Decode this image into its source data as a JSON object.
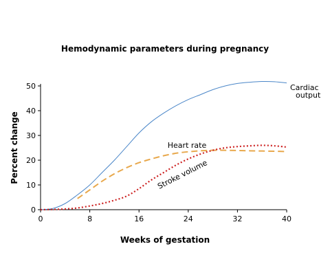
{
  "chart_data": {
    "type": "line",
    "title": "Hemodynamic parameters during pregnancy",
    "xlabel": "Weeks of gestation",
    "ylabel": "Percent change",
    "xlim": [
      0,
      40
    ],
    "ylim": [
      0,
      50
    ],
    "xticks": [
      0,
      8,
      16,
      24,
      32,
      40
    ],
    "yticks": [
      0,
      10,
      20,
      30,
      40,
      50
    ],
    "grid": false,
    "series": [
      {
        "name": "Cardiac output",
        "label_lines": [
          "Cardiac",
          "output"
        ],
        "color": "#4a86c8",
        "dash": "solid",
        "x": [
          0,
          2,
          4,
          6,
          8,
          10,
          12,
          14,
          16,
          18,
          20,
          22,
          24,
          26,
          28,
          30,
          32,
          34,
          36,
          38,
          40
        ],
        "y": [
          0,
          0.5,
          2.5,
          6,
          10,
          15,
          20,
          25.5,
          31,
          35.5,
          39,
          42,
          44.5,
          46.5,
          48.5,
          50,
          51,
          51.5,
          51.8,
          51.7,
          51.2
        ]
      },
      {
        "name": "Heart rate",
        "label_lines": [
          "Heart rate"
        ],
        "color": "#e8a84c",
        "dash": "dash",
        "x": [
          6,
          8,
          10,
          12,
          14,
          16,
          18,
          20,
          22,
          24,
          26,
          28,
          30,
          32,
          34,
          36,
          38,
          40
        ],
        "y": [
          4.5,
          8,
          11.5,
          14.5,
          17,
          19,
          20.5,
          21.8,
          22.8,
          23.4,
          23.8,
          24,
          24,
          23.9,
          23.8,
          23.7,
          23.6,
          23.5
        ]
      },
      {
        "name": "Stroke volume",
        "label_lines": [
          "Stroke volume"
        ],
        "color": "#cc1f1f",
        "dash": "dot",
        "x": [
          0,
          2,
          4,
          6,
          8,
          10,
          12,
          14,
          16,
          18,
          20,
          22,
          24,
          26,
          28,
          30,
          32,
          34,
          36,
          38,
          40
        ],
        "y": [
          0,
          0.1,
          0.3,
          0.7,
          1.5,
          2.5,
          3.8,
          5.5,
          8.5,
          12,
          15,
          18,
          20.5,
          22.5,
          24,
          25,
          25.5,
          25.8,
          26,
          25.8,
          25.3
        ]
      }
    ]
  }
}
